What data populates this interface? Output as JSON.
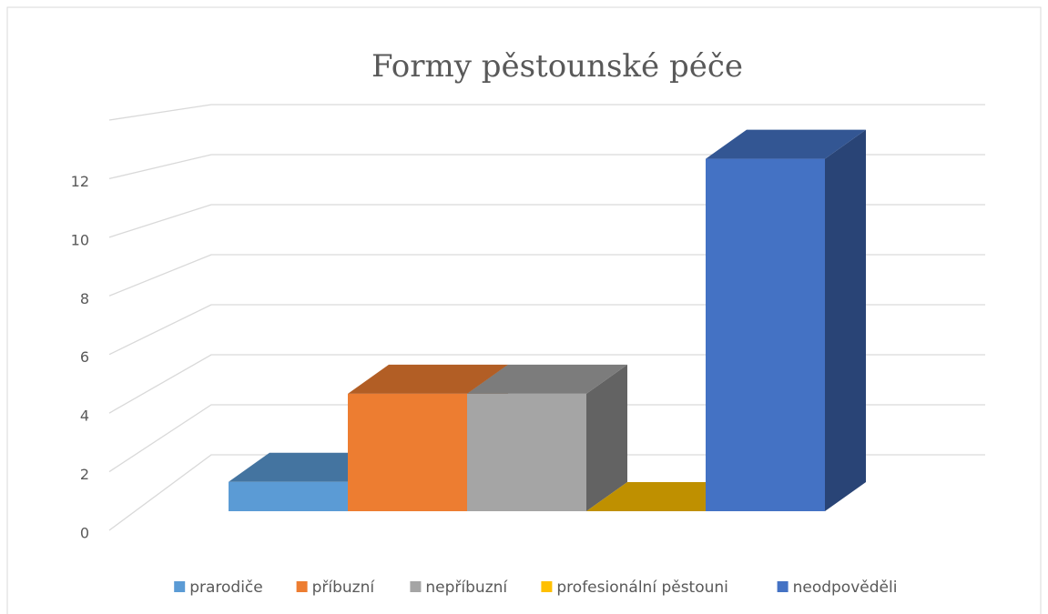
{
  "chart_data": {
    "type": "bar3d",
    "title": "Formy pěstounské péče",
    "categories": [
      "prarodiče",
      "příbuzní",
      "nepříbuzní",
      "profesionální pěstouni",
      "neodpověděli"
    ],
    "values": [
      1,
      4,
      4,
      0,
      12
    ],
    "colors": [
      "#5b9bd5",
      "#ed7d31",
      "#a5a5a5",
      "#ffc000",
      "#4472c4"
    ],
    "ylim": [
      0,
      14
    ],
    "yticks": [
      0,
      2,
      4,
      6,
      8,
      10,
      12
    ],
    "grid": true,
    "legend": "bottom"
  }
}
